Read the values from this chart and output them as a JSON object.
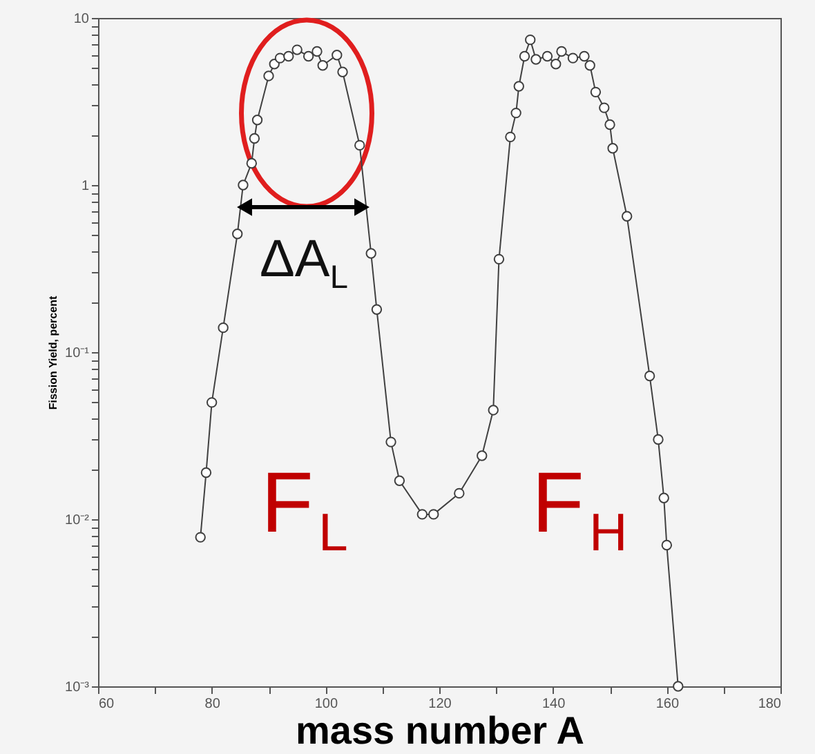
{
  "chart_data": {
    "type": "line",
    "xlabel": "mass number A",
    "ylabel": "Fission Yield, percent",
    "log": "y",
    "marker": "circle",
    "line_style": "solid",
    "grid": false,
    "xlim": [
      60,
      180
    ],
    "ylim": [
      0.001,
      10
    ],
    "xticks": [
      60,
      {
        "value": 70,
        "label": null
      },
      80,
      {
        "value": 90,
        "label": null
      },
      100,
      {
        "value": 110,
        "label": null
      },
      120,
      {
        "value": 130,
        "label": null
      },
      140,
      {
        "value": 150,
        "label": null
      },
      160,
      {
        "value": 170,
        "label": null
      },
      180
    ],
    "yticks": [
      {
        "value": 0.001,
        "label": "10⁻³"
      },
      {
        "value": 0.002,
        "label": null
      },
      {
        "value": 0.003,
        "label": null
      },
      {
        "value": 0.004,
        "label": null
      },
      {
        "value": 0.005,
        "label": null
      },
      {
        "value": 0.006,
        "label": null
      },
      {
        "value": 0.007,
        "label": null
      },
      {
        "value": 0.008,
        "label": null
      },
      {
        "value": 0.009,
        "label": null
      },
      {
        "value": 0.01,
        "label": "10⁻²"
      },
      {
        "value": 0.02,
        "label": null
      },
      {
        "value": 0.03,
        "label": null
      },
      {
        "value": 0.04,
        "label": null
      },
      {
        "value": 0.05,
        "label": null
      },
      {
        "value": 0.06,
        "label": null
      },
      {
        "value": 0.07,
        "label": null
      },
      {
        "value": 0.08,
        "label": null
      },
      {
        "value": 0.09,
        "label": null
      },
      {
        "value": 0.1,
        "label": "10⁻¹"
      },
      {
        "value": 0.2,
        "label": null
      },
      {
        "value": 0.3,
        "label": null
      },
      {
        "value": 0.4,
        "label": null
      },
      {
        "value": 0.5,
        "label": null
      },
      {
        "value": 0.6,
        "label": null
      },
      {
        "value": 0.7,
        "label": null
      },
      {
        "value": 0.8,
        "label": null
      },
      {
        "value": 0.9,
        "label": null
      },
      1,
      {
        "value": 2,
        "label": null
      },
      {
        "value": 3,
        "label": null
      },
      {
        "value": 4,
        "label": null
      },
      {
        "value": 5,
        "label": null
      },
      {
        "value": 6,
        "label": null
      },
      {
        "value": 7,
        "label": null
      },
      {
        "value": 8,
        "label": null
      },
      {
        "value": 9,
        "label": null
      },
      10
    ],
    "annotations": [
      "ΔA$_{L}$",
      "F$_{L}$",
      "F$_{H}$"
    ],
    "series": [
      {
        "color": "#404040",
        "x": [
          78,
          79,
          80,
          82,
          84.5,
          85.5,
          87,
          87.5,
          88,
          90,
          91,
          92,
          93.5,
          95,
          97,
          98.5,
          99.5,
          102,
          103,
          106,
          108,
          109,
          111.5,
          113,
          117,
          119,
          123.5,
          127.5,
          129.5,
          130.5,
          132.5,
          133.5,
          134,
          135,
          136,
          137,
          139,
          140.5,
          141.5,
          143.5,
          145.5,
          146.5,
          147.5,
          149,
          150,
          150.5,
          153,
          157,
          158.5,
          159.5,
          160,
          162
        ],
        "values": [
          0.0078,
          0.019,
          0.05,
          0.14,
          0.51,
          1.0,
          1.35,
          1.9,
          2.45,
          4.5,
          5.3,
          5.75,
          5.9,
          6.45,
          5.9,
          6.3,
          5.2,
          6.0,
          4.75,
          1.73,
          0.39,
          0.18,
          0.029,
          0.017,
          0.0107,
          0.0107,
          0.0143,
          0.024,
          0.045,
          0.36,
          1.94,
          2.7,
          3.9,
          5.9,
          7.4,
          5.65,
          5.9,
          5.3,
          6.3,
          5.75,
          5.9,
          5.2,
          3.6,
          2.9,
          2.3,
          1.66,
          0.65,
          0.072,
          0.03,
          0.0134,
          0.007,
          0.001
        ]
      }
    ]
  }
}
